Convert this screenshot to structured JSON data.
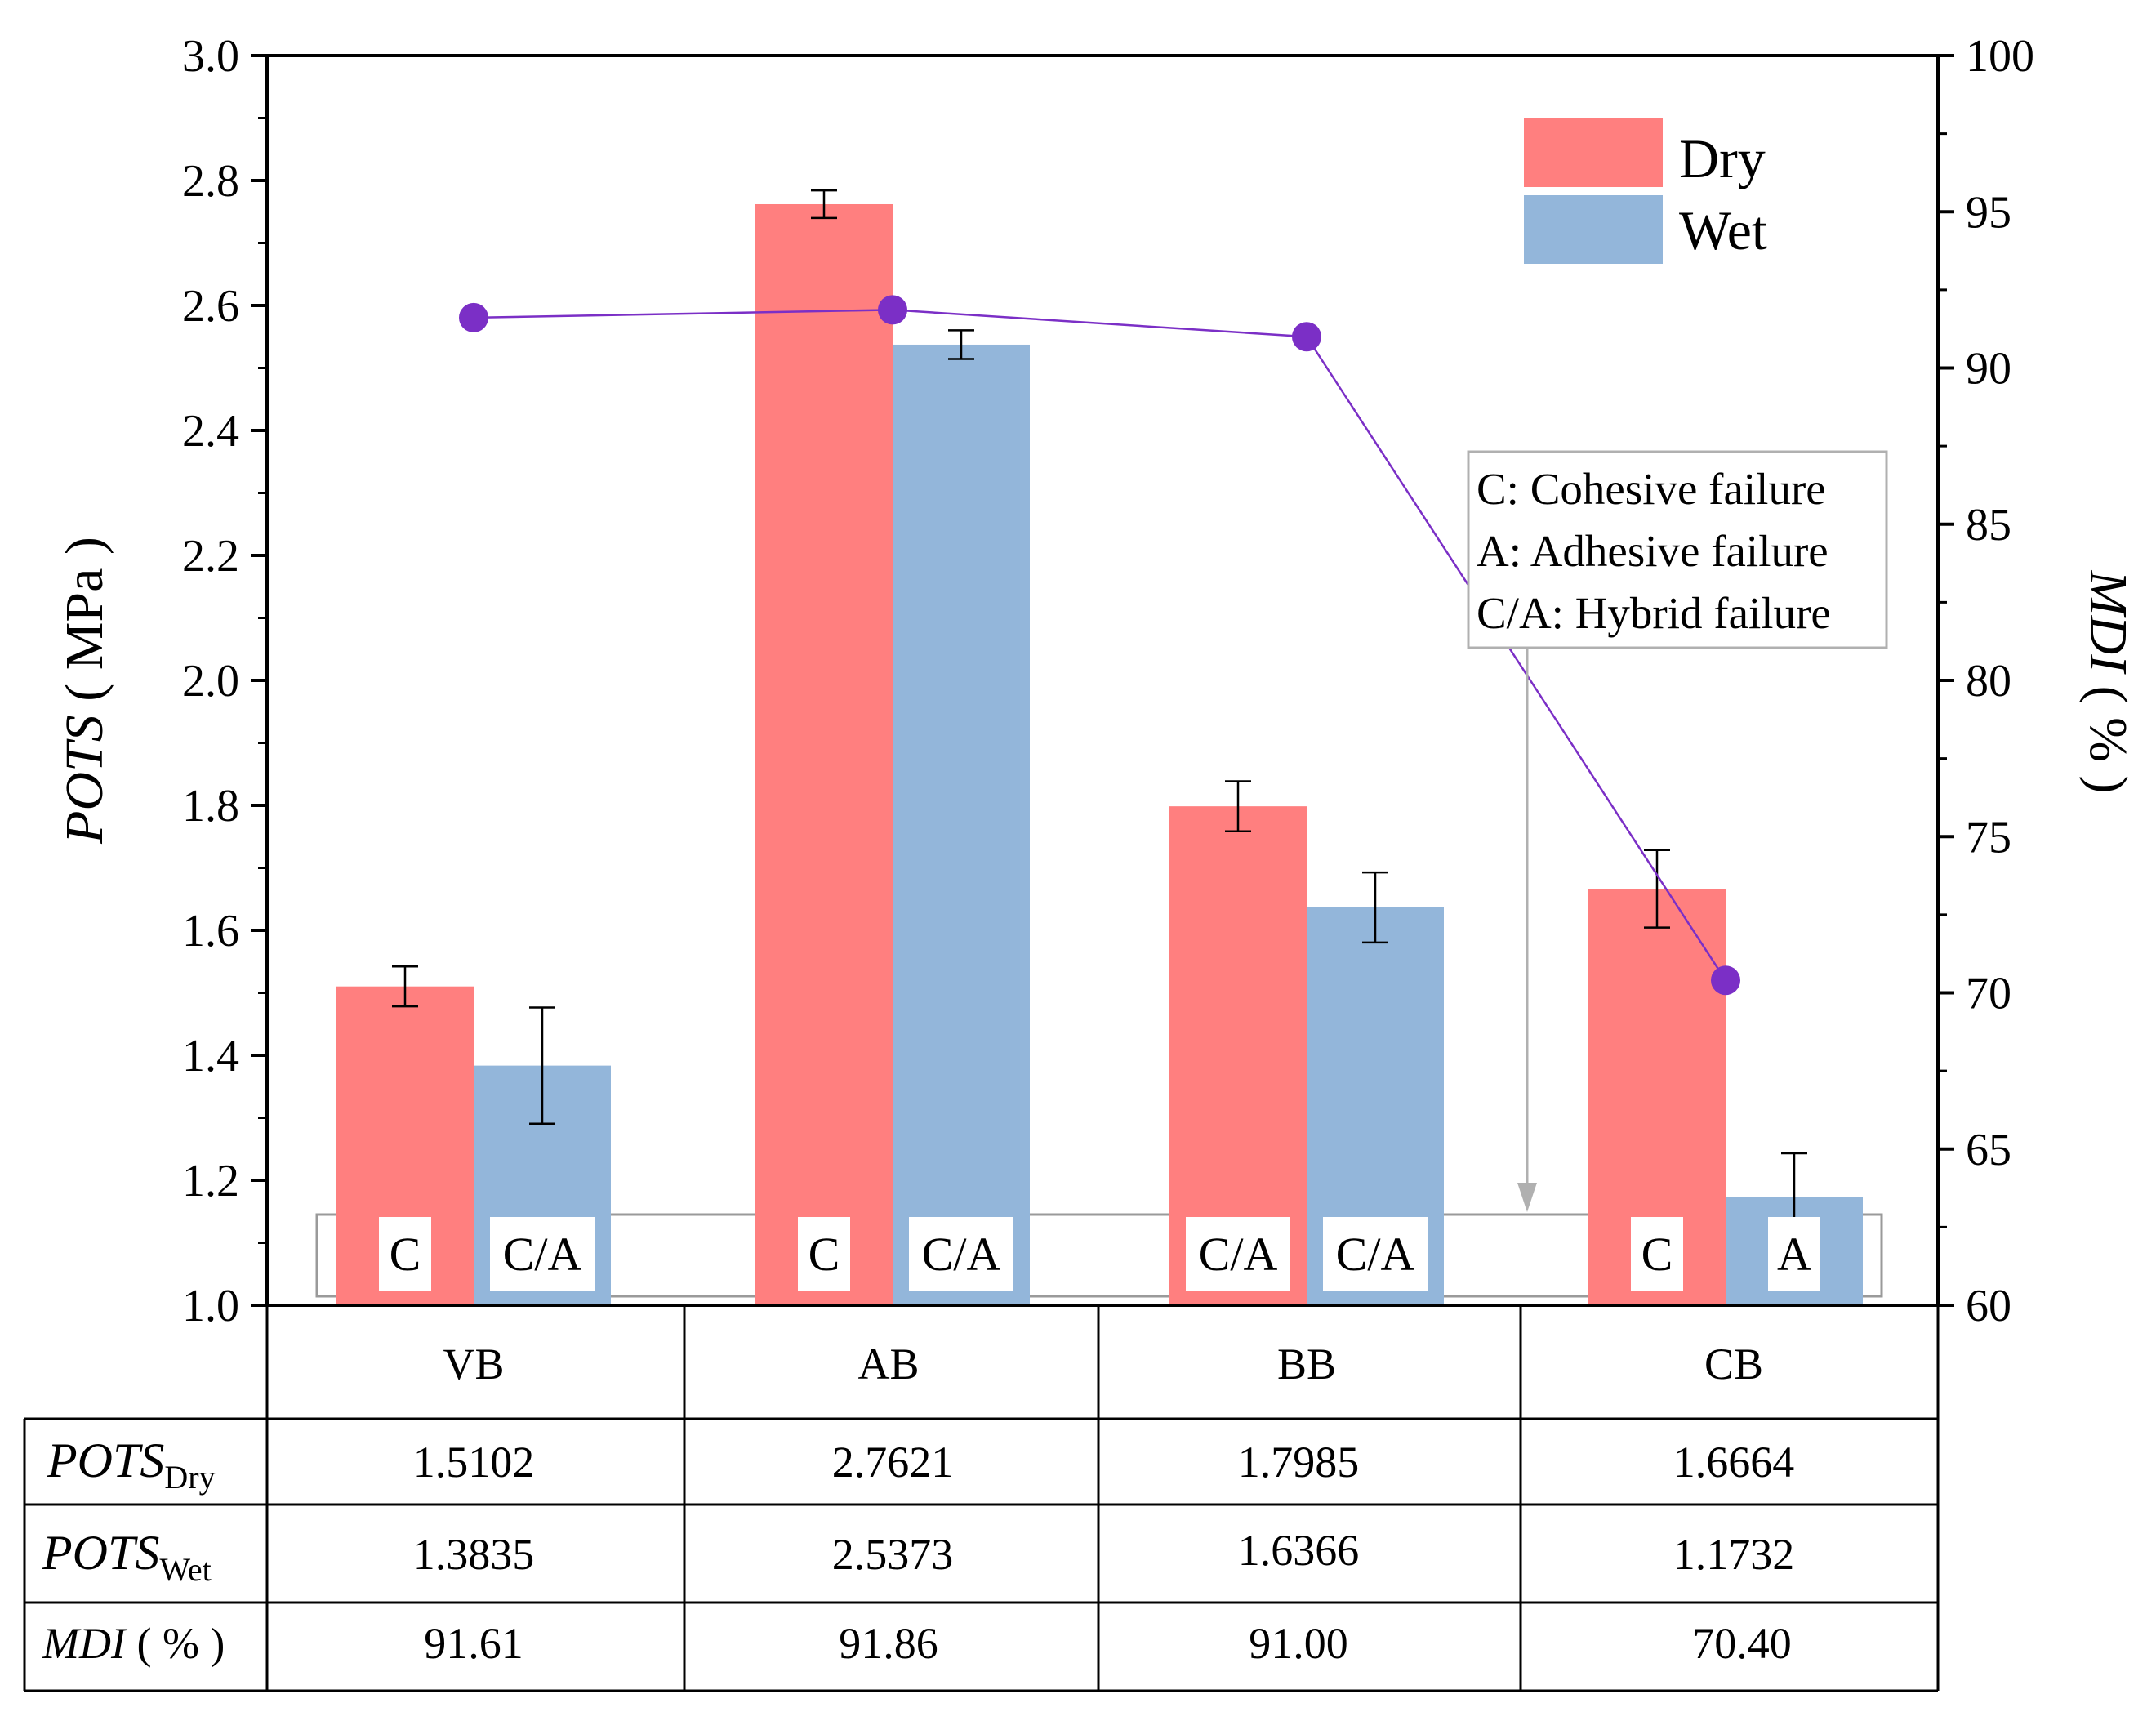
{
  "colors": {
    "dry": "#FF7F7F",
    "wet": "#93B6DA",
    "mdi": "#7B2FC6",
    "axis": "#000000",
    "frame": "#9a9a9a"
  },
  "chart_data": {
    "type": "bar",
    "categories": [
      "VB",
      "AB",
      "BB",
      "CB"
    ],
    "series": [
      {
        "name": "Dry",
        "values": [
          1.5102,
          2.7621,
          1.7985,
          1.6664
        ],
        "errors": [
          0.032,
          0.022,
          0.04,
          0.062
        ],
        "failure_modes": [
          "C",
          "C",
          "C/A",
          "C"
        ]
      },
      {
        "name": "Wet",
        "values": [
          1.3835,
          2.5373,
          1.6366,
          1.1732
        ],
        "errors": [
          0.093,
          0.023,
          0.056,
          0.07
        ],
        "failure_modes": [
          "C/A",
          "C/A",
          "C/A",
          "A"
        ]
      }
    ],
    "line_series": {
      "name": "MDI",
      "axis": "right",
      "values": [
        91.61,
        91.86,
        91.0,
        70.4
      ]
    },
    "ylabel_left": {
      "italic": "POTS",
      "rest": " ( MPa )"
    },
    "ylabel_right": {
      "italic": "MDI",
      "rest": " ( % )"
    },
    "ylim_left": [
      1.0,
      3.0
    ],
    "yticks_left": [
      "1.0",
      "1.2",
      "1.4",
      "1.6",
      "1.8",
      "2.0",
      "2.2",
      "2.4",
      "2.6",
      "2.8",
      "3.0"
    ],
    "ylim_right": [
      60,
      100
    ],
    "yticks_right": [
      "60",
      "65",
      "70",
      "75",
      "80",
      "85",
      "90",
      "95",
      "100"
    ],
    "legend": [
      "Dry",
      "Wet"
    ],
    "legend_position": "top-right",
    "failure_note": [
      "C:  Cohesive failure",
      "A: Adhesive failure",
      "C/A: Hybrid failure"
    ]
  },
  "table": {
    "columns": [
      "VB",
      "AB",
      "BB",
      "CB"
    ],
    "rows": [
      {
        "label_main": "POTS",
        "label_sub": "Dry",
        "values": [
          "1.5102",
          "2.7621",
          "1.7985",
          "1.6664"
        ]
      },
      {
        "label_main": "POTS",
        "label_sub": "Wet",
        "values": [
          "1.3835",
          "2.5373",
          "1.6366",
          "1.1732"
        ]
      },
      {
        "label_main": "MDI",
        "label_sub": " ( % )",
        "values": [
          "91.61",
          "91.86",
          "91.00",
          "70.40"
        ]
      }
    ]
  }
}
